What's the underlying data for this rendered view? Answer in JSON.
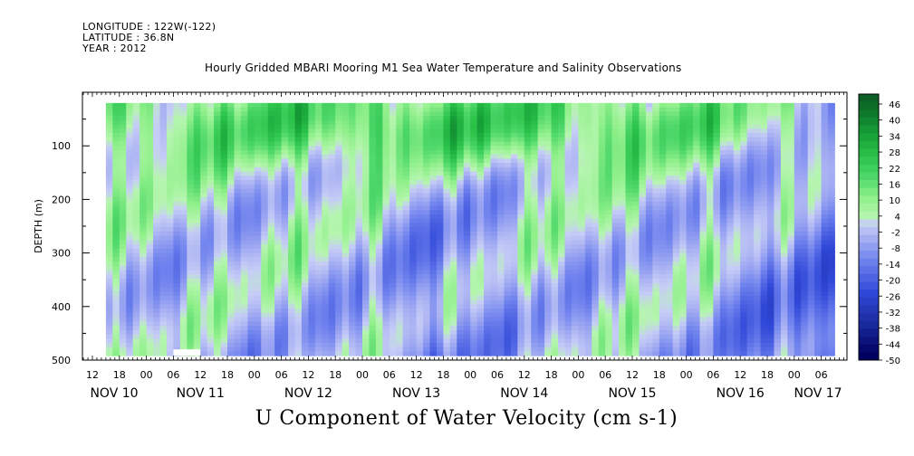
{
  "header": {
    "longitude": "LONGITUDE : 122W(-122)",
    "latitude": "LATITUDE : 36.8N",
    "year": "YEAR : 2012"
  },
  "chart_data": {
    "type": "heatmap",
    "title": "Hourly Gridded MBARI Mooring M1 Sea Water Temperature and Salinity Observations",
    "xlabel": "U Component of Water Velocity (cm s-1)",
    "ylabel": "DEPTH (m)",
    "y_ticks": [
      100,
      200,
      300,
      400,
      500
    ],
    "ylim": [
      500,
      0
    ],
    "x_hour_ticks": [
      "12",
      "18",
      "00",
      "06",
      "12",
      "18",
      "00",
      "06",
      "12",
      "18",
      "00",
      "06",
      "12",
      "18",
      "00",
      "06",
      "12",
      "18",
      "00",
      "06",
      "12",
      "18",
      "00",
      "06",
      "12",
      "18",
      "00",
      "06"
    ],
    "x_day_labels": [
      "NOV 10",
      "NOV 11",
      "NOV 12",
      "NOV 13",
      "NOV 14",
      "NOV 15",
      "NOV 16",
      "NOV 17"
    ],
    "colorbar": {
      "labels": [
        "46",
        "40",
        "34",
        "28",
        "22",
        "16",
        "10",
        "4",
        "-2",
        "-8",
        "-14",
        "-20",
        "-26",
        "-32",
        "-38",
        "-44",
        "-50"
      ],
      "min": -50,
      "max": 50,
      "step": 3,
      "colors": {
        "darkgreen": "#0b5a23",
        "green": "#2bc34a",
        "lightgreen": "#90f08a",
        "lightblue": "#b9bff5",
        "blue": "#6f82ee",
        "darkblue": "#1a2a9c",
        "navy": "#000060"
      }
    },
    "grid": false,
    "depth_range_m": [
      20,
      490
    ],
    "time_range": [
      "NOV 10 15:00",
      "NOV 17 09:00"
    ],
    "pattern": {
      "banded_structure": "upward-sloping diagonal green bands in upper 300 m, vertical streaks of blue and green throughout",
      "surface_green_strong_from": "NOV 11 to NOV 15",
      "blue_dominant_near_end": "NOV 16 to NOV 17"
    }
  }
}
